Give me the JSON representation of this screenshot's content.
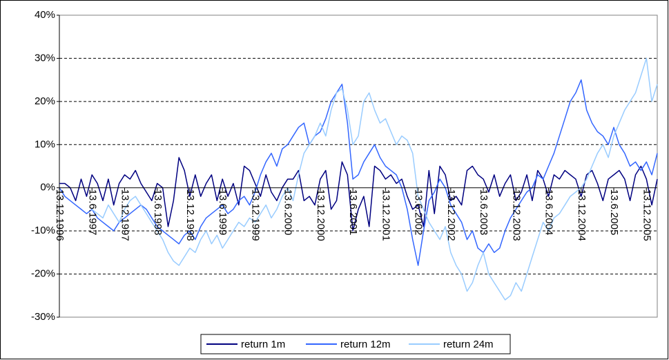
{
  "chart_data": {
    "type": "line",
    "x": [
      "1996-12-13",
      "1997-01-13",
      "1997-02-13",
      "1997-03-13",
      "1997-04-13",
      "1997-05-13",
      "1997-06-13",
      "1997-07-13",
      "1997-08-13",
      "1997-09-13",
      "1997-10-13",
      "1997-11-13",
      "1997-12-13",
      "1998-01-13",
      "1998-02-13",
      "1998-03-13",
      "1998-04-13",
      "1998-05-13",
      "1998-06-13",
      "1998-07-13",
      "1998-08-13",
      "1998-09-13",
      "1998-10-13",
      "1998-11-13",
      "1998-12-13",
      "1999-01-13",
      "1999-02-13",
      "1999-03-13",
      "1999-04-13",
      "1999-05-13",
      "1999-06-13",
      "1999-07-13",
      "1999-08-13",
      "1999-09-13",
      "1999-10-13",
      "1999-11-13",
      "1999-12-13",
      "2000-01-13",
      "2000-02-13",
      "2000-03-13",
      "2000-04-13",
      "2000-05-13",
      "2000-06-13",
      "2000-07-13",
      "2000-08-13",
      "2000-09-13",
      "2000-10-13",
      "2000-11-13",
      "2000-12-13",
      "2001-01-13",
      "2001-02-13",
      "2001-03-13",
      "2001-04-13",
      "2001-05-13",
      "2001-06-13",
      "2001-07-13",
      "2001-08-13",
      "2001-09-13",
      "2001-10-13",
      "2001-11-13",
      "2001-12-13",
      "2002-01-13",
      "2002-02-13",
      "2002-03-13",
      "2002-04-13",
      "2002-05-13",
      "2002-06-13",
      "2002-07-13",
      "2002-08-13",
      "2002-09-13",
      "2002-10-13",
      "2002-11-13",
      "2002-12-13",
      "2003-01-13",
      "2003-02-13",
      "2003-03-13",
      "2003-04-13",
      "2003-05-13",
      "2003-06-13",
      "2003-07-13",
      "2003-08-13",
      "2003-09-13",
      "2003-10-13",
      "2003-11-13",
      "2003-12-13",
      "2004-01-13",
      "2004-02-13",
      "2004-03-13",
      "2004-04-13",
      "2004-05-13",
      "2004-06-13",
      "2004-07-13",
      "2004-08-13",
      "2004-09-13",
      "2004-10-13",
      "2004-11-13",
      "2004-12-13",
      "2005-01-13",
      "2005-02-13",
      "2005-03-13",
      "2005-04-13",
      "2005-05-13",
      "2005-06-13",
      "2005-07-13",
      "2005-08-13",
      "2005-09-13",
      "2005-10-13",
      "2005-11-13",
      "2005-12-13",
      "2006-01-13",
      "2006-02-13"
    ],
    "series": [
      {
        "name": "return 1m",
        "color": "#000080",
        "values": [
          1,
          1,
          0,
          -3,
          2,
          -2,
          3,
          1,
          -3,
          2,
          -4,
          1,
          3,
          2,
          4,
          1,
          -1,
          -3,
          1,
          0,
          -9,
          -3,
          7,
          4,
          -2,
          3,
          -2,
          1,
          3,
          -3,
          2,
          -2,
          1,
          -4,
          5,
          4,
          1,
          -2,
          3,
          -1,
          -3,
          0,
          2,
          2,
          4,
          -3,
          -2,
          -4,
          2,
          4,
          -5,
          -3,
          6,
          3,
          -10,
          -5,
          -2,
          -9,
          5,
          4,
          2,
          3,
          1,
          2,
          -2,
          -5,
          -4,
          -9,
          4,
          -6,
          5,
          3,
          -3,
          -2,
          -4,
          4,
          5,
          3,
          2,
          -1,
          3,
          -2,
          1,
          3,
          -3,
          -1,
          3,
          -3,
          4,
          2,
          -2,
          3,
          2,
          4,
          3,
          2,
          -2,
          3,
          4,
          1,
          -3,
          2,
          3,
          4,
          2,
          -3,
          3,
          5,
          2,
          -4,
          2
        ]
      },
      {
        "name": "return 12m",
        "color": "#3366ff",
        "values": [
          0,
          -2,
          -3,
          -4,
          -5,
          -6,
          -5,
          -7,
          -8,
          -9,
          -10,
          -8,
          -7,
          -6,
          -5,
          -4,
          -5,
          -7,
          -9,
          -10,
          -11,
          -12,
          -13,
          -11,
          -10,
          -12,
          -9,
          -7,
          -6,
          -5,
          -4,
          -6,
          -5,
          -3,
          -2,
          -4,
          -1,
          3,
          6,
          8,
          5,
          9,
          10,
          12,
          14,
          15,
          10,
          12,
          13,
          16,
          20,
          22,
          24,
          15,
          2,
          3,
          6,
          8,
          10,
          7,
          5,
          4,
          3,
          0,
          -5,
          -12,
          -18,
          -10,
          -3,
          -1,
          2,
          0,
          -4,
          -6,
          -8,
          -12,
          -10,
          -14,
          -15,
          -13,
          -15,
          -14,
          -10,
          -7,
          -5,
          -3,
          -1,
          0,
          3,
          2,
          5,
          8,
          12,
          16,
          20,
          22,
          25,
          18,
          15,
          13,
          12,
          10,
          14,
          10,
          8,
          5,
          6,
          4,
          6,
          3,
          8
        ]
      },
      {
        "name": "return 24m",
        "color": "#99ccff",
        "values": [
          null,
          null,
          null,
          null,
          null,
          null,
          -5,
          -6,
          -7,
          -4,
          -6,
          -8,
          -5,
          -3,
          -2,
          -4,
          -6,
          -8,
          -10,
          -12,
          -15,
          -17,
          -18,
          -16,
          -14,
          -15,
          -12,
          -10,
          -13,
          -11,
          -14,
          -12,
          -10,
          -8,
          -9,
          -7,
          -8,
          -6,
          -4,
          -7,
          -5,
          -2,
          0,
          -3,
          3,
          8,
          10,
          12,
          15,
          12,
          18,
          22,
          23,
          18,
          10,
          12,
          20,
          22,
          18,
          15,
          16,
          13,
          10,
          12,
          11,
          8,
          -2,
          -5,
          -8,
          -10,
          -12,
          -9,
          -15,
          -18,
          -20,
          -24,
          -22,
          -18,
          -15,
          -20,
          -22,
          -24,
          -26,
          -25,
          -22,
          -24,
          -20,
          -16,
          -12,
          -8,
          -10,
          -7,
          -6,
          -4,
          -2,
          -1,
          0,
          2,
          5,
          8,
          10,
          7,
          12,
          15,
          18,
          20,
          22,
          26,
          30,
          20,
          24
        ]
      }
    ],
    "xlim": [
      "1996-12-13",
      "2006-02-13"
    ],
    "xticks": [
      {
        "value": "1996-12-13",
        "label": "13.12.1996"
      },
      {
        "value": "1997-06-13",
        "label": "13.6.1997"
      },
      {
        "value": "1997-12-13",
        "label": "13.12.1997"
      },
      {
        "value": "1998-06-13",
        "label": "13.6.1998"
      },
      {
        "value": "1998-12-13",
        "label": "13.12.1998"
      },
      {
        "value": "1999-06-13",
        "label": "13.6.1999"
      },
      {
        "value": "1999-12-13",
        "label": "13.12.1999"
      },
      {
        "value": "2000-06-13",
        "label": "13.6.2000"
      },
      {
        "value": "2000-12-13",
        "label": "13.12.2000"
      },
      {
        "value": "2001-06-13",
        "label": "13.6.2001"
      },
      {
        "value": "2001-12-13",
        "label": "13.12.2001"
      },
      {
        "value": "2002-06-13",
        "label": "13.6.2002"
      },
      {
        "value": "2002-12-13",
        "label": "13.12.2002"
      },
      {
        "value": "2003-06-13",
        "label": "13.6.2003"
      },
      {
        "value": "2003-12-13",
        "label": "13.12.2003"
      },
      {
        "value": "2004-06-13",
        "label": "13.6.2004"
      },
      {
        "value": "2004-12-13",
        "label": "13.12.2004"
      },
      {
        "value": "2005-06-13",
        "label": "13.6.2005"
      },
      {
        "value": "2005-12-13",
        "label": "13.12.2005"
      }
    ],
    "ylim": [
      -30,
      40
    ],
    "yticks": [
      {
        "value": -30,
        "label": "-30%"
      },
      {
        "value": -20,
        "label": "-20%"
      },
      {
        "value": -10,
        "label": "-10%"
      },
      {
        "value": 0,
        "label": "0%"
      },
      {
        "value": 10,
        "label": "10%"
      },
      {
        "value": 20,
        "label": "20%"
      },
      {
        "value": 30,
        "label": "30%"
      },
      {
        "value": 40,
        "label": "40%"
      }
    ],
    "grid": true,
    "legend": "bottom"
  }
}
